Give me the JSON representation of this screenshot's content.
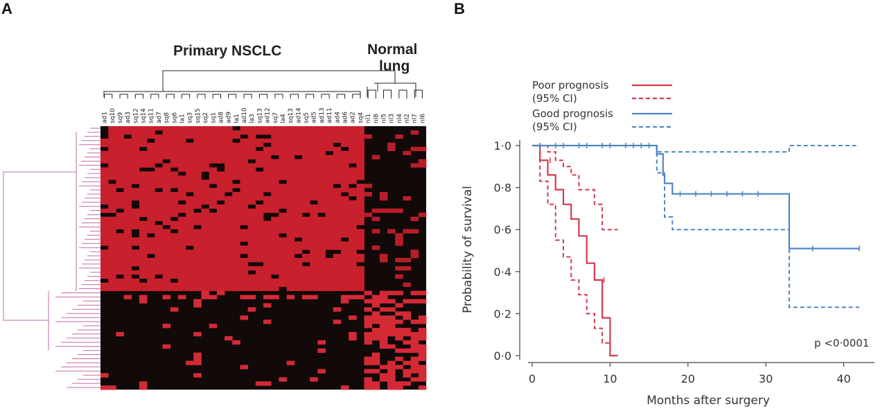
{
  "panels": {
    "a_letter": "A",
    "b_letter": "B"
  },
  "heatmap": {
    "groups": [
      {
        "label": "Primary NSCLC"
      },
      {
        "label": "Normal\nlung"
      }
    ],
    "samples": [
      "ad1",
      "sq10",
      "sq9",
      "ad3",
      "sq12",
      "sq14",
      "sq11",
      "ad7",
      "sq8",
      "sq6",
      "la1",
      "sq3",
      "sq15",
      "sq2",
      "sq1",
      "ad8",
      "ad9",
      "la1",
      "ad10",
      "la3",
      "sq13",
      "ad12",
      "sq7",
      "la4",
      "sq13",
      "ad14",
      "sq5",
      "ad5",
      "ad13",
      "ad11",
      "ad4",
      "ad6",
      "ad2",
      "sq4",
      "nl1",
      "nl8",
      "nl5",
      "nl3",
      "nl4",
      "nl2",
      "nl7",
      "nl6"
    ],
    "colors": {
      "high": "#d21c2a",
      "low": "#120909",
      "dendrogram": "#c06aa8"
    }
  },
  "chart_data": {
    "type": "line",
    "xlabel": "Months after surgery",
    "ylabel": "Probability of survival",
    "xlim": [
      0,
      42
    ],
    "ylim": [
      0,
      1.0
    ],
    "xticks": [
      "0",
      "10",
      "20",
      "30",
      "40"
    ],
    "xtick_values": [
      0,
      10,
      20,
      30,
      40
    ],
    "yticks": [
      "0·0",
      "0·2",
      "0·4",
      "0·6",
      "0·8",
      "1·0"
    ],
    "ytick_values": [
      0,
      0.2,
      0.4,
      0.6,
      0.8,
      1.0
    ],
    "grid": false,
    "legend_position": "top-left",
    "annotation": "p <0·0001",
    "legend": [
      {
        "label": "Poor prognosis",
        "color": "#d23a4e",
        "style": "solid"
      },
      {
        "label": "(95% CI)",
        "color": "#d23a4e",
        "style": "dashed"
      },
      {
        "label": "Good prognosis",
        "color": "#4a86c6",
        "style": "solid"
      },
      {
        "label": "(95% CI)",
        "color": "#4a86c6",
        "style": "dashed"
      }
    ],
    "series": [
      {
        "name": "Poor prognosis",
        "color": "#d23a4e",
        "style": "solid",
        "steps": [
          [
            0,
            1.0
          ],
          [
            1,
            0.93
          ],
          [
            2,
            0.86
          ],
          [
            3,
            0.79
          ],
          [
            4,
            0.72
          ],
          [
            5,
            0.65
          ],
          [
            6,
            0.57
          ],
          [
            7,
            0.44
          ],
          [
            8,
            0.36
          ],
          [
            9,
            0.18
          ],
          [
            10,
            0.0
          ]
        ],
        "end": 11,
        "censor": [
          [
            2.3,
            0.93
          ],
          [
            9.2,
            0.36
          ]
        ]
      },
      {
        "name": "Poor prognosis (95% CI, upper)",
        "color": "#d23a4e",
        "style": "dashed",
        "steps": [
          [
            0,
            1.0
          ],
          [
            2,
            0.97
          ],
          [
            3,
            0.93
          ],
          [
            4,
            0.9
          ],
          [
            5,
            0.86
          ],
          [
            6,
            0.79
          ],
          [
            8,
            0.72
          ],
          [
            9,
            0.6
          ]
        ],
        "end": 11
      },
      {
        "name": "Poor prognosis (95% CI, lower)",
        "color": "#d23a4e",
        "style": "dashed",
        "steps": [
          [
            0,
            1.0
          ],
          [
            1,
            0.83
          ],
          [
            2,
            0.72
          ],
          [
            3,
            0.55
          ],
          [
            4,
            0.47
          ],
          [
            5,
            0.36
          ],
          [
            6,
            0.29
          ],
          [
            7,
            0.2
          ],
          [
            8,
            0.13
          ],
          [
            9,
            0.06
          ],
          [
            10,
            0.0
          ]
        ],
        "end": 11
      },
      {
        "name": "Good prognosis",
        "color": "#4a86c6",
        "style": "solid",
        "steps": [
          [
            0,
            1.0
          ],
          [
            16,
            0.96
          ],
          [
            16.8,
            0.86
          ],
          [
            17,
            0.82
          ],
          [
            18,
            0.77
          ],
          [
            33,
            0.51
          ]
        ],
        "end": 42,
        "censor": [
          [
            1,
            1.0
          ],
          [
            3,
            1.0
          ],
          [
            4,
            1.0
          ],
          [
            6,
            1.0
          ],
          [
            7,
            1.0
          ],
          [
            9,
            1.0
          ],
          [
            10,
            1.0
          ],
          [
            12,
            1.0
          ],
          [
            13,
            1.0
          ],
          [
            14,
            1.0
          ],
          [
            15,
            1.0
          ],
          [
            19,
            0.77
          ],
          [
            21,
            0.77
          ],
          [
            23,
            0.77
          ],
          [
            25,
            0.77
          ],
          [
            27,
            0.77
          ],
          [
            29,
            0.77
          ],
          [
            36,
            0.51
          ],
          [
            42,
            0.51
          ]
        ]
      },
      {
        "name": "Good prognosis (95% CI, upper)",
        "color": "#4a86c6",
        "style": "dashed",
        "steps": [
          [
            0,
            1.0
          ],
          [
            16,
            0.97
          ],
          [
            33,
            1.0
          ]
        ],
        "end": 42
      },
      {
        "name": "Good prognosis (95% CI, lower)",
        "color": "#4a86c6",
        "style": "dashed",
        "steps": [
          [
            0,
            1.0
          ],
          [
            16,
            0.87
          ],
          [
            17,
            0.66
          ],
          [
            18,
            0.6
          ],
          [
            33,
            0.23
          ]
        ],
        "end": 42
      }
    ]
  }
}
